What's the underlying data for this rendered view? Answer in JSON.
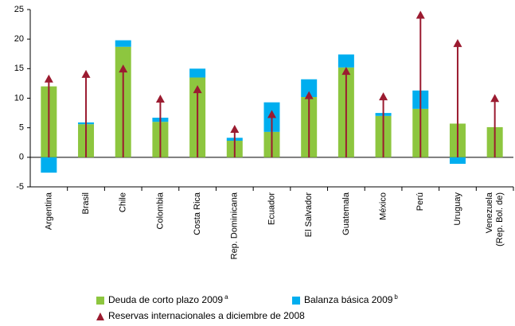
{
  "chart_data": {
    "type": "stacked_bar_arrow",
    "categories": [
      "Argentina",
      "Brasil",
      "Chile",
      "Colombia",
      "Costa Rica",
      "Rep. Dominicana",
      "Ecuador",
      "El Salvador",
      "Guatemala",
      "México",
      "Perú",
      "Uruguay",
      "Venezuela (Rep. Bol. de)"
    ],
    "series": [
      {
        "name": "Deuda de corto plazo 2009",
        "note": "a",
        "color": "#8dc63f",
        "kind": "bar",
        "values": [
          12,
          5.6,
          18.7,
          6,
          13.5,
          2.8,
          4.3,
          10.2,
          15.2,
          7,
          8.2,
          5.7,
          5.1
        ]
      },
      {
        "name": "Balanza básica 2009",
        "note": "b",
        "color": "#00aeef",
        "kind": "bar",
        "values": [
          -2.6,
          0.3,
          1.1,
          0.7,
          1.5,
          0.5,
          5,
          3,
          2.2,
          0.5,
          3.1,
          -1.1,
          0
        ]
      },
      {
        "name": "Reservas internacionales a diciembre de 2008",
        "color": "#9b1b30",
        "kind": "arrow",
        "values": [
          14,
          14.8,
          15.7,
          10.6,
          12.2,
          5.5,
          8,
          11.2,
          15.3,
          11,
          24.8,
          20,
          10.7
        ]
      }
    ],
    "ylim": [
      -5,
      25
    ],
    "yticks": [
      -5,
      0,
      5,
      10,
      15,
      20,
      25
    ],
    "grid": false
  }
}
